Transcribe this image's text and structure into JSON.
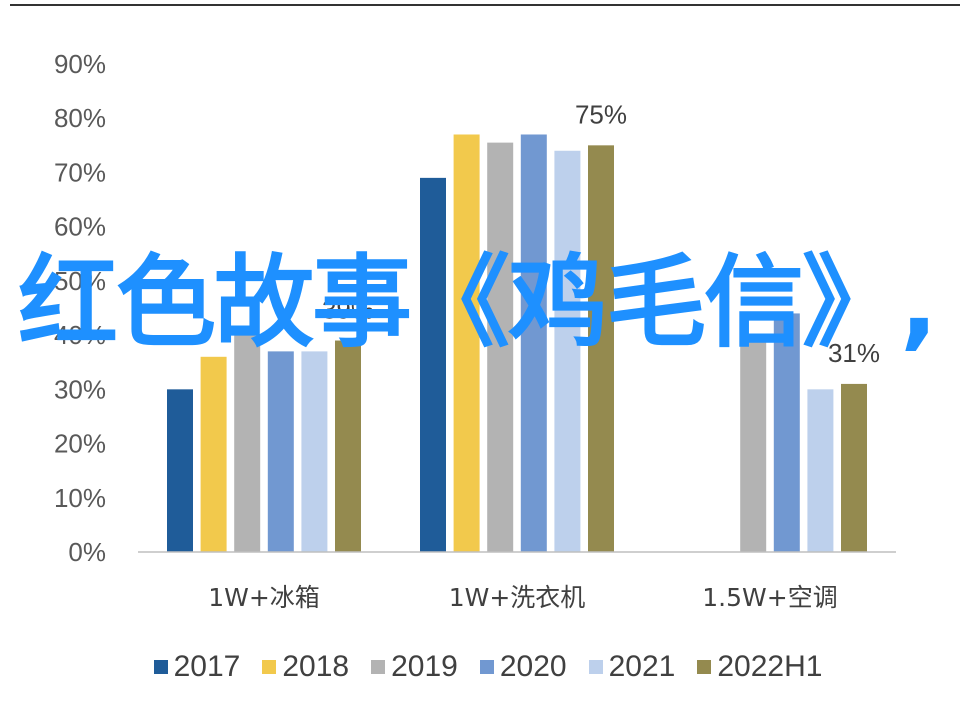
{
  "chart_data": {
    "type": "bar",
    "categories": [
      "1W+冰箱",
      "1W+洗衣机",
      "1.5W+空调"
    ],
    "series": [
      {
        "name": "2017",
        "color": "#1F5C99",
        "values": [
          30,
          69,
          null
        ]
      },
      {
        "name": "2018",
        "color": "#F2C94C",
        "values": [
          36,
          77,
          null
        ]
      },
      {
        "name": "2019",
        "color": "#B3B3B3",
        "values": [
          40,
          75.5,
          40
        ]
      },
      {
        "name": "2020",
        "color": "#7198D1",
        "values": [
          37,
          77,
          44
        ]
      },
      {
        "name": "2021",
        "color": "#BDD0EC",
        "values": [
          37,
          74,
          30
        ]
      },
      {
        "name": "2022H1",
        "color": "#948A4F",
        "values": [
          39,
          75,
          31
        ]
      }
    ],
    "data_labels": [
      {
        "category": 0,
        "series": "2022H1",
        "text": "39%"
      },
      {
        "category": 1,
        "series": "2022H1",
        "text": "75%"
      },
      {
        "category": 2,
        "series": "2022H1",
        "text": "31%"
      }
    ],
    "yticks": [
      "0%",
      "10%",
      "20%",
      "30%",
      "40%",
      "50%",
      "60%",
      "70%",
      "80%",
      "90%"
    ],
    "ylim": [
      0,
      90
    ],
    "legend_position": "bottom",
    "grid": false
  },
  "overlay_text": "红色故事《鸡毛信》,"
}
